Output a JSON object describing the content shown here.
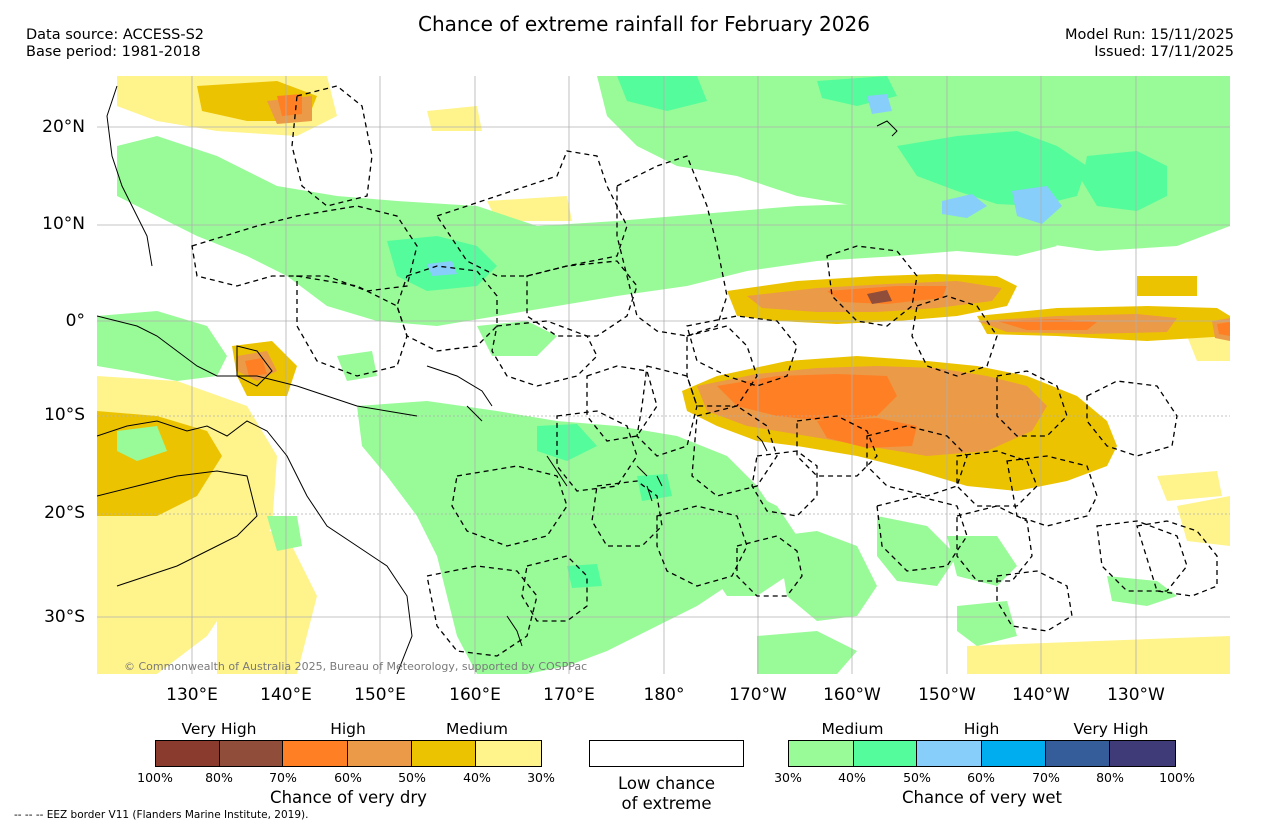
{
  "header": {
    "title": "Chance of extreme rainfall for February 2026",
    "data_source": "Data source: ACCESS-S2",
    "base_period": "Base period: 1981-2018",
    "model_run": "Model Run: 15/11/2025",
    "issued": "Issued: 17/11/2025"
  },
  "axes": {
    "lat_labels": [
      "20°N",
      "10°N",
      "0°",
      "10°S",
      "20°S",
      "30°S"
    ],
    "lon_labels": [
      "130°E",
      "140°E",
      "150°E",
      "160°E",
      "170°E",
      "180°",
      "170°W",
      "160°W",
      "150°W",
      "140°W",
      "130°W"
    ]
  },
  "map": {
    "copyright": "© Commonwealth of Australia 2025, Bureau of Meteorology, supported by COSPPac",
    "eez_note": "--  --  -- EEZ border V11 (Flanders Marine Institute, 2019).",
    "colors": {
      "dry_very_high_dark": "#8b3a2e",
      "dry_very_high": "#8f4d3a",
      "dry_high_dark": "#ff7f24",
      "dry_high": "#eb9a48",
      "dry_medium_dark": "#ecc300",
      "dry_medium": "#fff38b",
      "wet_medium": "#98fb98",
      "wet_medium_dark": "#54fc9c",
      "wet_high": "#87cefa",
      "wet_high_dark": "#00aeef",
      "wet_very_high": "#345d9a",
      "wet_very_high_dark": "#3f3a78",
      "land": "#ffffff"
    }
  },
  "legend": {
    "dry": {
      "categories": [
        "Very High",
        "High",
        "Medium"
      ],
      "percents": [
        "100%",
        "80%",
        "70%",
        "60%",
        "50%",
        "40%",
        "30%"
      ],
      "colors": [
        "#8b3a2e",
        "#8f4d3a",
        "#ff7f24",
        "#eb9a48",
        "#ecc300",
        "#fff38b"
      ],
      "caption": "Chance of very dry"
    },
    "low": {
      "caption_line1": "Low chance",
      "caption_line2": "of extreme"
    },
    "wet": {
      "categories": [
        "Medium",
        "High",
        "Very High"
      ],
      "percents": [
        "30%",
        "40%",
        "50%",
        "60%",
        "70%",
        "80%",
        "100%"
      ],
      "colors": [
        "#98fb98",
        "#54fc9c",
        "#87cefa",
        "#00aeef",
        "#345d9a",
        "#3f3a78"
      ],
      "caption": "Chance of very wet"
    }
  }
}
